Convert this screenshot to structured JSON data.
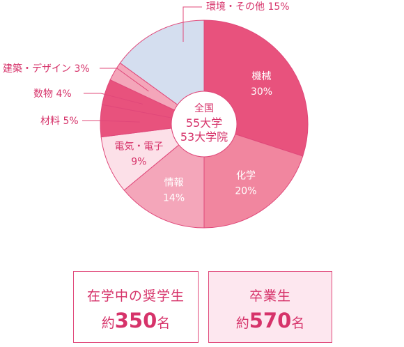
{
  "chart_data": {
    "type": "pie",
    "center_label": {
      "line1": "全国",
      "line2": "55大学",
      "line3": "53大学院"
    },
    "slices": [
      {
        "name": "機械",
        "value": 30,
        "label": "30%",
        "color": "#e8527d",
        "label_inside": true
      },
      {
        "name": "化学",
        "value": 20,
        "label": "20%",
        "color": "#f1869f",
        "label_inside": true
      },
      {
        "name": "情報",
        "value": 14,
        "label": "14%",
        "color": "#f4a6ba",
        "label_inside": true
      },
      {
        "name": "電気・電子",
        "value": 9,
        "label": "9%",
        "color": "#fce0e8",
        "label_inside": true
      },
      {
        "name": "材料",
        "value": 5,
        "label": "5%",
        "color": "#e8527d",
        "label_inside": false
      },
      {
        "name": "数物",
        "value": 4,
        "label": "4%",
        "color": "#e8527d",
        "label_inside": false
      },
      {
        "name": "建築・デザイン",
        "value": 3,
        "label": "3%",
        "color": "#f4a6ba",
        "label_inside": false
      },
      {
        "name": "環境・その他",
        "value": 15,
        "label": "15%",
        "color": "#d4deef",
        "label_inside": false
      }
    ],
    "start": "top, clockwise",
    "colors": {
      "text_dark": "#d6336a",
      "text_light": "#ffffff",
      "leader": "#e0487a"
    }
  },
  "cards": {
    "students": {
      "line1": "在学中の奨学生",
      "prefix": "約",
      "number": "350",
      "suffix": "名"
    },
    "graduates": {
      "line1": "卒業生",
      "prefix": "約",
      "number": "570",
      "suffix": "名"
    }
  }
}
